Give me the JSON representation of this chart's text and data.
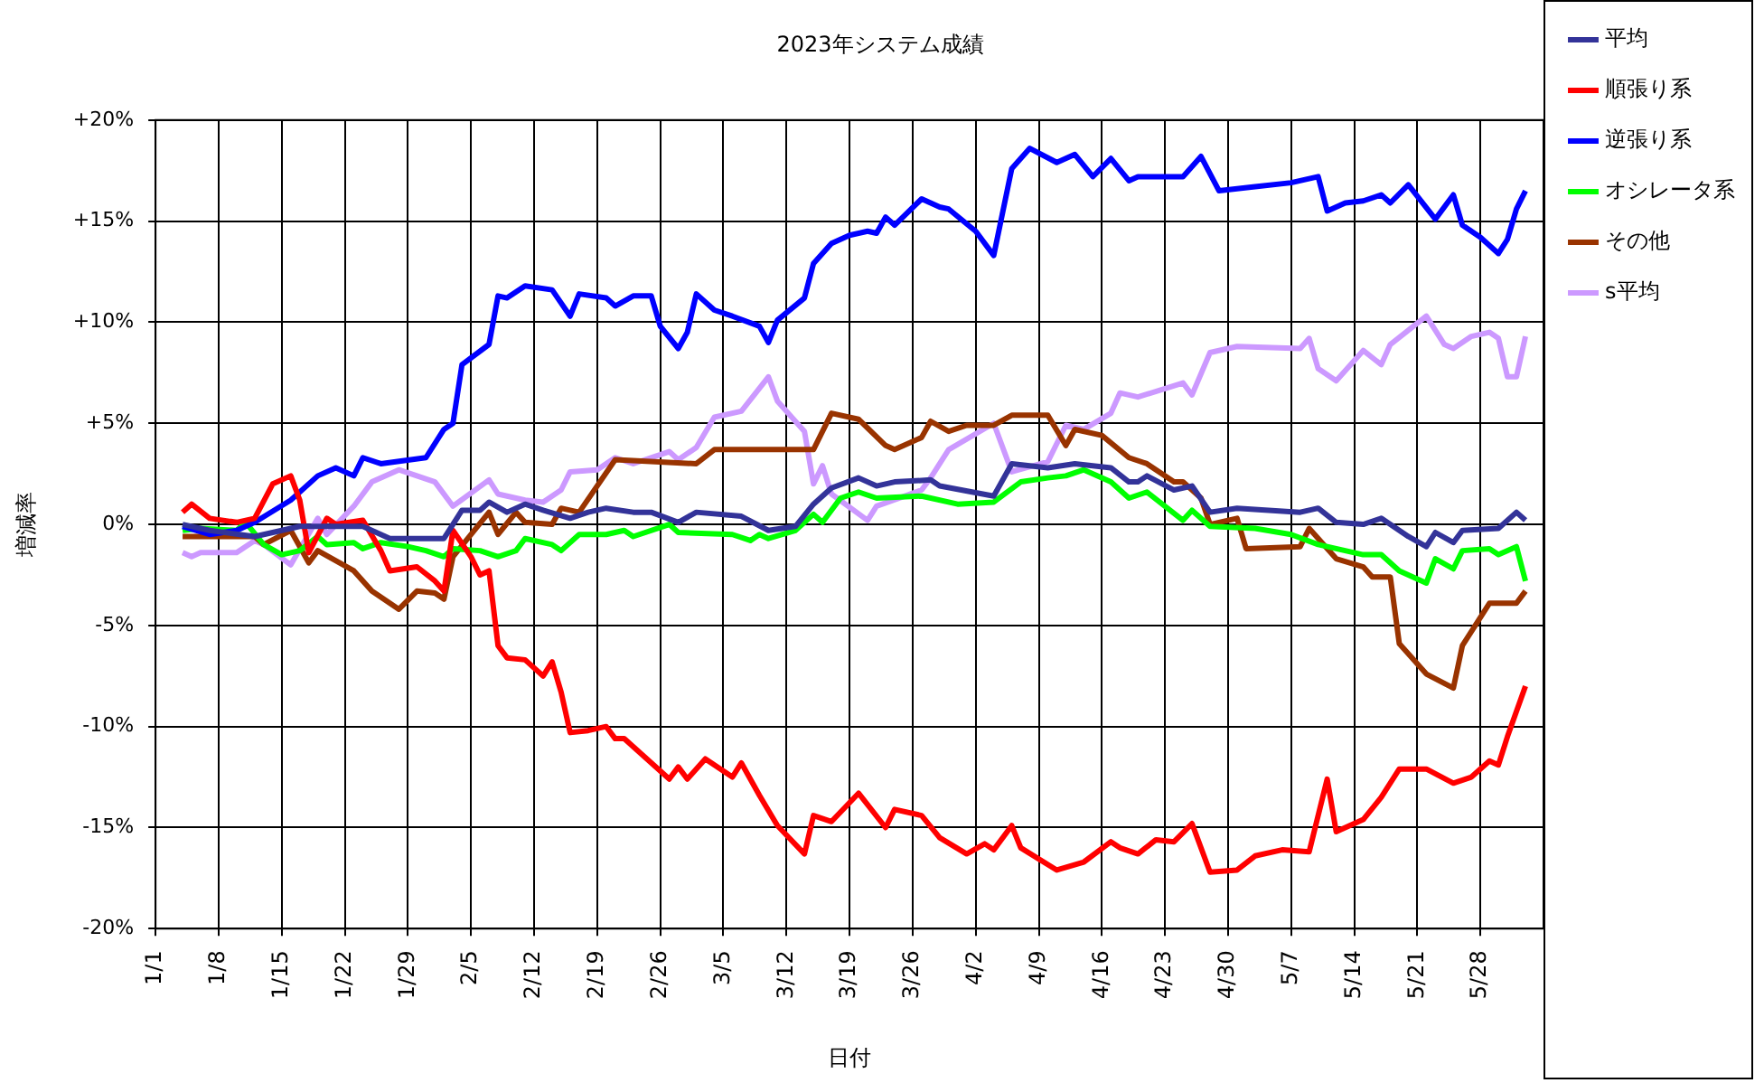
{
  "chart_data": {
    "type": "line",
    "title": "2023年システム成績",
    "xlabel": "日付",
    "ylabel": "増減率",
    "grid": true,
    "legend": "top right",
    "xlim": [
      "2023-01-01",
      "2023-06-04"
    ],
    "xticks": [
      {
        "value": "2023-01-01",
        "label": "1/1"
      },
      {
        "value": "2023-01-08",
        "label": "1/8"
      },
      {
        "value": "2023-01-15",
        "label": "1/15"
      },
      {
        "value": "2023-01-22",
        "label": "1/22"
      },
      {
        "value": "2023-01-29",
        "label": "1/29"
      },
      {
        "value": "2023-02-05",
        "label": "2/5"
      },
      {
        "value": "2023-02-12",
        "label": "2/12"
      },
      {
        "value": "2023-02-19",
        "label": "2/19"
      },
      {
        "value": "2023-02-26",
        "label": "2/26"
      },
      {
        "value": "2023-03-05",
        "label": "3/5"
      },
      {
        "value": "2023-03-12",
        "label": "3/12"
      },
      {
        "value": "2023-03-19",
        "label": "3/19"
      },
      {
        "value": "2023-03-26",
        "label": "3/26"
      },
      {
        "value": "2023-04-02",
        "label": "4/2"
      },
      {
        "value": "2023-04-09",
        "label": "4/9"
      },
      {
        "value": "2023-04-16",
        "label": "4/16"
      },
      {
        "value": "2023-04-23",
        "label": "4/23"
      },
      {
        "value": "2023-04-30",
        "label": "4/30"
      },
      {
        "value": "2023-05-07",
        "label": "5/7"
      },
      {
        "value": "2023-05-14",
        "label": "5/14"
      },
      {
        "value": "2023-05-21",
        "label": "5/21"
      },
      {
        "value": "2023-05-28",
        "label": "5/28"
      }
    ],
    "ylim": [
      -20,
      20
    ],
    "yticks": [
      {
        "value": -20,
        "label": "-20%"
      },
      {
        "value": -15,
        "label": "-15%"
      },
      {
        "value": -10,
        "label": "-10%"
      },
      {
        "value": -5,
        "label": "-5%"
      },
      {
        "value": 0,
        "label": "0%"
      },
      {
        "value": 5,
        "label": "+5%"
      },
      {
        "value": 10,
        "label": "+10%"
      },
      {
        "value": 15,
        "label": "+15%"
      },
      {
        "value": 20,
        "label": "+20%"
      }
    ],
    "series": [
      {
        "name": "平均",
        "color": "#333399",
        "x": [
          "2023-01-04",
          "2023-01-07",
          "2023-01-12",
          "2023-01-15",
          "2023-01-17",
          "2023-01-24",
          "2023-01-25",
          "2023-01-27",
          "2023-01-31",
          "2023-02-02",
          "2023-02-04",
          "2023-02-06",
          "2023-02-07",
          "2023-02-09",
          "2023-02-11",
          "2023-02-13",
          "2023-02-16",
          "2023-02-18",
          "2023-02-20",
          "2023-02-23",
          "2023-02-25",
          "2023-02-28",
          "2023-03-02",
          "2023-03-07",
          "2023-03-10",
          "2023-03-13",
          "2023-03-15",
          "2023-03-17",
          "2023-03-20",
          "2023-03-22",
          "2023-03-24",
          "2023-03-28",
          "2023-03-29",
          "2023-04-04",
          "2023-04-06",
          "2023-04-10",
          "2023-04-13",
          "2023-04-17",
          "2023-04-19",
          "2023-04-20",
          "2023-04-21",
          "2023-04-24",
          "2023-04-26",
          "2023-04-28",
          "2023-05-01",
          "2023-05-08",
          "2023-05-10",
          "2023-05-12",
          "2023-05-15",
          "2023-05-17",
          "2023-05-20",
          "2023-05-22",
          "2023-05-23",
          "2023-05-25",
          "2023-05-26",
          "2023-05-30",
          "2023-06-01",
          "2023-06-02"
        ],
        "values": [
          0.0,
          -0.3,
          -0.6,
          -0.3,
          -0.1,
          -0.1,
          -0.3,
          -0.7,
          -0.7,
          -0.7,
          0.7,
          0.7,
          1.1,
          0.6,
          1.0,
          0.7,
          0.3,
          0.6,
          0.8,
          0.6,
          0.6,
          0.1,
          0.6,
          0.4,
          -0.3,
          -0.1,
          1.0,
          1.8,
          2.3,
          1.9,
          2.1,
          2.2,
          1.9,
          1.4,
          3.0,
          2.8,
          3.0,
          2.8,
          2.1,
          2.1,
          2.4,
          1.7,
          1.9,
          0.6,
          0.8,
          0.6,
          0.8,
          0.1,
          0.0,
          0.3,
          -0.6,
          -1.1,
          -0.4,
          -0.9,
          -0.3,
          -0.2,
          0.6,
          0.2
        ]
      },
      {
        "name": "順張り系",
        "color": "#ff0000",
        "x": [
          "2023-01-04",
          "2023-01-05",
          "2023-01-07",
          "2023-01-10",
          "2023-01-12",
          "2023-01-14",
          "2023-01-16",
          "2023-01-17",
          "2023-01-18",
          "2023-01-20",
          "2023-01-21",
          "2023-01-24",
          "2023-01-26",
          "2023-01-27",
          "2023-01-30",
          "2023-02-01",
          "2023-02-02",
          "2023-02-03",
          "2023-02-05",
          "2023-02-06",
          "2023-02-07",
          "2023-02-08",
          "2023-02-09",
          "2023-02-11",
          "2023-02-13",
          "2023-02-14",
          "2023-02-15",
          "2023-02-16",
          "2023-02-18",
          "2023-02-20",
          "2023-02-21",
          "2023-02-22",
          "2023-02-27",
          "2023-02-28",
          "2023-03-01",
          "2023-03-03",
          "2023-03-06",
          "2023-03-07",
          "2023-03-09",
          "2023-03-11",
          "2023-03-14",
          "2023-03-15",
          "2023-03-17",
          "2023-03-20",
          "2023-03-23",
          "2023-03-24",
          "2023-03-27",
          "2023-03-29",
          "2023-04-01",
          "2023-04-03",
          "2023-04-04",
          "2023-04-06",
          "2023-04-07",
          "2023-04-11",
          "2023-04-14",
          "2023-04-17",
          "2023-04-18",
          "2023-04-20",
          "2023-04-22",
          "2023-04-24",
          "2023-04-26",
          "2023-04-28",
          "2023-05-01",
          "2023-05-03",
          "2023-05-06",
          "2023-05-09",
          "2023-05-11",
          "2023-05-12",
          "2023-05-15",
          "2023-05-17",
          "2023-05-19",
          "2023-05-22",
          "2023-05-25",
          "2023-05-27",
          "2023-05-29",
          "2023-05-30",
          "2023-05-31",
          "2023-06-02"
        ],
        "values": [
          0.6,
          1.0,
          0.3,
          0.1,
          0.3,
          2.0,
          2.4,
          1.2,
          -1.4,
          0.3,
          0.0,
          0.2,
          -1.3,
          -2.3,
          -2.1,
          -2.8,
          -3.3,
          -0.3,
          -1.6,
          -2.5,
          -2.3,
          -6.0,
          -6.6,
          -6.7,
          -7.5,
          -6.8,
          -8.3,
          -10.3,
          -10.2,
          -10.0,
          -10.6,
          -10.6,
          -12.6,
          -12.0,
          -12.6,
          -11.6,
          -12.5,
          -11.8,
          -13.4,
          -14.9,
          -16.3,
          -14.4,
          -14.7,
          -13.3,
          -15.0,
          -14.1,
          -14.4,
          -15.5,
          -16.3,
          -15.8,
          -16.1,
          -14.9,
          -16.0,
          -17.1,
          -16.7,
          -15.7,
          -16.0,
          -16.3,
          -15.6,
          -15.7,
          -14.8,
          -17.2,
          -17.1,
          -16.4,
          -16.1,
          -16.2,
          -12.6,
          -15.2,
          -14.6,
          -13.5,
          -12.1,
          -12.1,
          -12.8,
          -12.5,
          -11.7,
          -11.9,
          -10.5,
          -8.0
        ]
      },
      {
        "name": "逆張り系",
        "color": "#0000ff",
        "x": [
          "2023-01-04",
          "2023-01-07",
          "2023-01-10",
          "2023-01-12",
          "2023-01-16",
          "2023-01-19",
          "2023-01-21",
          "2023-01-23",
          "2023-01-24",
          "2023-01-26",
          "2023-01-31",
          "2023-02-02",
          "2023-02-03",
          "2023-02-04",
          "2023-02-07",
          "2023-02-08",
          "2023-02-09",
          "2023-02-11",
          "2023-02-14",
          "2023-02-16",
          "2023-02-17",
          "2023-02-20",
          "2023-02-21",
          "2023-02-23",
          "2023-02-25",
          "2023-02-26",
          "2023-02-28",
          "2023-03-01",
          "2023-03-02",
          "2023-03-04",
          "2023-03-06",
          "2023-03-09",
          "2023-03-10",
          "2023-03-11",
          "2023-03-14",
          "2023-03-15",
          "2023-03-17",
          "2023-03-19",
          "2023-03-21",
          "2023-03-22",
          "2023-03-23",
          "2023-03-24",
          "2023-03-27",
          "2023-03-29",
          "2023-03-30",
          "2023-04-02",
          "2023-04-04",
          "2023-04-06",
          "2023-04-08",
          "2023-04-11",
          "2023-04-13",
          "2023-04-15",
          "2023-04-17",
          "2023-04-19",
          "2023-04-20",
          "2023-04-25",
          "2023-04-27",
          "2023-04-29",
          "2023-05-03",
          "2023-05-07",
          "2023-05-10",
          "2023-05-11",
          "2023-05-13",
          "2023-05-15",
          "2023-05-17",
          "2023-05-18",
          "2023-05-20",
          "2023-05-23",
          "2023-05-25",
          "2023-05-26",
          "2023-05-28",
          "2023-05-30",
          "2023-05-31",
          "2023-06-01",
          "2023-06-02"
        ],
        "values": [
          -0.1,
          -0.5,
          -0.3,
          0.1,
          1.2,
          2.4,
          2.8,
          2.4,
          3.3,
          3.0,
          3.3,
          4.7,
          5.0,
          7.9,
          8.9,
          11.3,
          11.2,
          11.8,
          11.6,
          10.3,
          11.4,
          11.2,
          10.8,
          11.3,
          11.3,
          9.8,
          8.7,
          9.5,
          11.4,
          10.6,
          10.3,
          9.8,
          9.0,
          10.1,
          11.2,
          12.9,
          13.9,
          14.3,
          14.5,
          14.4,
          15.2,
          14.8,
          16.1,
          15.7,
          15.6,
          14.5,
          13.3,
          17.6,
          18.6,
          17.9,
          18.3,
          17.2,
          18.1,
          17.0,
          17.2,
          17.2,
          18.2,
          16.5,
          16.7,
          16.9,
          17.2,
          15.5,
          15.9,
          16.0,
          16.3,
          15.9,
          16.8,
          15.1,
          16.3,
          14.8,
          14.2,
          13.4,
          14.1,
          15.6,
          16.5
        ]
      },
      {
        "name": "オシレータ系",
        "color": "#00ff00",
        "x": [
          "2023-01-04",
          "2023-01-06",
          "2023-01-10",
          "2023-01-11",
          "2023-01-13",
          "2023-01-15",
          "2023-01-17",
          "2023-01-19",
          "2023-01-20",
          "2023-01-23",
          "2023-01-24",
          "2023-01-26",
          "2023-01-29",
          "2023-01-31",
          "2023-02-02",
          "2023-02-03",
          "2023-02-06",
          "2023-02-08",
          "2023-02-10",
          "2023-02-11",
          "2023-02-14",
          "2023-02-15",
          "2023-02-17",
          "2023-02-20",
          "2023-02-22",
          "2023-02-23",
          "2023-02-27",
          "2023-02-28",
          "2023-03-06",
          "2023-03-08",
          "2023-03-09",
          "2023-03-10",
          "2023-03-13",
          "2023-03-15",
          "2023-03-16",
          "2023-03-18",
          "2023-03-20",
          "2023-03-22",
          "2023-03-27",
          "2023-03-31",
          "2023-04-04",
          "2023-04-07",
          "2023-04-10",
          "2023-04-12",
          "2023-04-14",
          "2023-04-17",
          "2023-04-19",
          "2023-04-21",
          "2023-04-25",
          "2023-04-26",
          "2023-04-28",
          "2023-05-03",
          "2023-05-07",
          "2023-05-10",
          "2023-05-15",
          "2023-05-17",
          "2023-05-19",
          "2023-05-22",
          "2023-05-23",
          "2023-05-25",
          "2023-05-26",
          "2023-05-29",
          "2023-05-30",
          "2023-06-01",
          "2023-06-02"
        ],
        "values": [
          -0.3,
          -0.2,
          -0.3,
          0.1,
          -1.0,
          -1.5,
          -1.3,
          -0.6,
          -1.0,
          -0.9,
          -1.2,
          -0.9,
          -1.1,
          -1.3,
          -1.6,
          -1.2,
          -1.3,
          -1.6,
          -1.3,
          -0.7,
          -1.0,
          -1.3,
          -0.5,
          -0.5,
          -0.3,
          -0.6,
          0.0,
          -0.4,
          -0.5,
          -0.8,
          -0.5,
          -0.7,
          -0.3,
          0.5,
          0.1,
          1.3,
          1.6,
          1.3,
          1.4,
          1.0,
          1.1,
          2.1,
          2.3,
          2.4,
          2.7,
          2.1,
          1.3,
          1.6,
          0.2,
          0.7,
          -0.1,
          -0.2,
          -0.5,
          -1.0,
          -1.5,
          -1.5,
          -2.3,
          -2.9,
          -1.7,
          -2.2,
          -1.3,
          -1.2,
          -1.5,
          -1.1,
          -2.8
        ]
      },
      {
        "name": "その他",
        "color": "#993300",
        "x": [
          "2023-01-04",
          "2023-01-12",
          "2023-01-13",
          "2023-01-16",
          "2023-01-18",
          "2023-01-19",
          "2023-01-23",
          "2023-01-25",
          "2023-01-28",
          "2023-01-30",
          "2023-02-01",
          "2023-02-02",
          "2023-02-03",
          "2023-02-07",
          "2023-02-08",
          "2023-02-10",
          "2023-02-11",
          "2023-02-14",
          "2023-02-15",
          "2023-02-17",
          "2023-02-21",
          "2023-03-02",
          "2023-03-04",
          "2023-03-15",
          "2023-03-17",
          "2023-03-20",
          "2023-03-23",
          "2023-03-24",
          "2023-03-27",
          "2023-03-28",
          "2023-03-30",
          "2023-04-01",
          "2023-04-04",
          "2023-04-06",
          "2023-04-10",
          "2023-04-12",
          "2023-04-13",
          "2023-04-16",
          "2023-04-19",
          "2023-04-21",
          "2023-04-24",
          "2023-04-25",
          "2023-04-27",
          "2023-04-28",
          "2023-05-01",
          "2023-05-02",
          "2023-05-08",
          "2023-05-09",
          "2023-05-12",
          "2023-05-15",
          "2023-05-16",
          "2023-05-18",
          "2023-05-19",
          "2023-05-22",
          "2023-05-25",
          "2023-05-26",
          "2023-05-29",
          "2023-06-01",
          "2023-06-02"
        ],
        "values": [
          -0.6,
          -0.6,
          -1.0,
          -0.3,
          -1.9,
          -1.3,
          -2.3,
          -3.3,
          -4.2,
          -3.3,
          -3.4,
          -3.7,
          -1.6,
          0.6,
          -0.5,
          0.6,
          0.1,
          0.0,
          0.8,
          0.6,
          3.2,
          3.0,
          3.7,
          3.7,
          5.5,
          5.2,
          3.9,
          3.7,
          4.3,
          5.1,
          4.6,
          4.9,
          4.9,
          5.4,
          5.4,
          3.9,
          4.7,
          4.4,
          3.3,
          3.0,
          2.1,
          2.1,
          1.3,
          0.0,
          0.3,
          -1.2,
          -1.1,
          -0.2,
          -1.7,
          -2.1,
          -2.6,
          -2.6,
          -5.9,
          -7.4,
          -8.1,
          -6.0,
          -3.9,
          -3.9,
          -3.3
        ]
      },
      {
        "name": "s平均",
        "color": "#cc99ff",
        "x": [
          "2023-01-04",
          "2023-01-05",
          "2023-01-06",
          "2023-01-10",
          "2023-01-12",
          "2023-01-13",
          "2023-01-16",
          "2023-01-19",
          "2023-01-20",
          "2023-01-23",
          "2023-01-25",
          "2023-01-28",
          "2023-01-30",
          "2023-02-01",
          "2023-02-03",
          "2023-02-07",
          "2023-02-08",
          "2023-02-11",
          "2023-02-13",
          "2023-02-15",
          "2023-02-16",
          "2023-02-19",
          "2023-02-21",
          "2023-02-23",
          "2023-02-27",
          "2023-02-28",
          "2023-03-02",
          "2023-03-04",
          "2023-03-07",
          "2023-03-10",
          "2023-03-11",
          "2023-03-14",
          "2023-03-15",
          "2023-03-16",
          "2023-03-17",
          "2023-03-21",
          "2023-03-22",
          "2023-03-27",
          "2023-03-28",
          "2023-03-30",
          "2023-04-04",
          "2023-04-06",
          "2023-04-10",
          "2023-04-12",
          "2023-04-14",
          "2023-04-17",
          "2023-04-18",
          "2023-04-20",
          "2023-04-25",
          "2023-04-26",
          "2023-04-28",
          "2023-05-01",
          "2023-05-08",
          "2023-05-09",
          "2023-05-10",
          "2023-05-12",
          "2023-05-15",
          "2023-05-17",
          "2023-05-18",
          "2023-05-22",
          "2023-05-24",
          "2023-05-25",
          "2023-05-27",
          "2023-05-29",
          "2023-05-30",
          "2023-05-31",
          "2023-06-01",
          "2023-06-02"
        ],
        "values": [
          -1.4,
          -1.6,
          -1.4,
          -1.4,
          -0.8,
          -1.0,
          -2.0,
          0.3,
          -0.5,
          0.9,
          2.1,
          2.7,
          2.4,
          2.1,
          0.9,
          2.2,
          1.5,
          1.2,
          1.1,
          1.7,
          2.6,
          2.7,
          3.3,
          3.0,
          3.6,
          3.2,
          3.8,
          5.3,
          5.6,
          7.3,
          6.1,
          4.6,
          2.0,
          2.9,
          1.5,
          0.2,
          0.9,
          1.7,
          2.3,
          3.7,
          5.0,
          2.6,
          3.1,
          4.9,
          4.7,
          5.5,
          6.5,
          6.3,
          7.0,
          6.4,
          8.5,
          8.8,
          8.7,
          9.2,
          7.7,
          7.1,
          8.6,
          7.9,
          8.9,
          10.3,
          8.9,
          8.7,
          9.3,
          9.5,
          9.2,
          7.3,
          7.3,
          9.3
        ]
      }
    ]
  }
}
